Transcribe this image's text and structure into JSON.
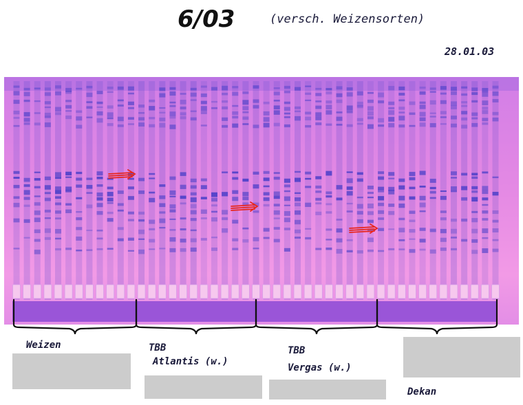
{
  "header": {
    "title": "6/03",
    "subtitle": "(versch. Weizensorten)",
    "date": "28.01.03"
  },
  "groups": [
    {
      "label": "Weizen",
      "label_line2": ""
    },
    {
      "label": "TBB",
      "label_line2": "Atlantis (w.)"
    },
    {
      "label": "TBB",
      "label_line2": "Vergas (w.)"
    },
    {
      "label": "Dekan",
      "label_line2": ""
    }
  ],
  "colors": {
    "gel_background": "#e48ae2",
    "band": "#4a3fc8",
    "well_strip": "#9a55d8",
    "arrow": "#e8261c",
    "redaction": "#cccccc"
  },
  "gel": {
    "lane_count": 47,
    "annotation_arrows": 3
  }
}
